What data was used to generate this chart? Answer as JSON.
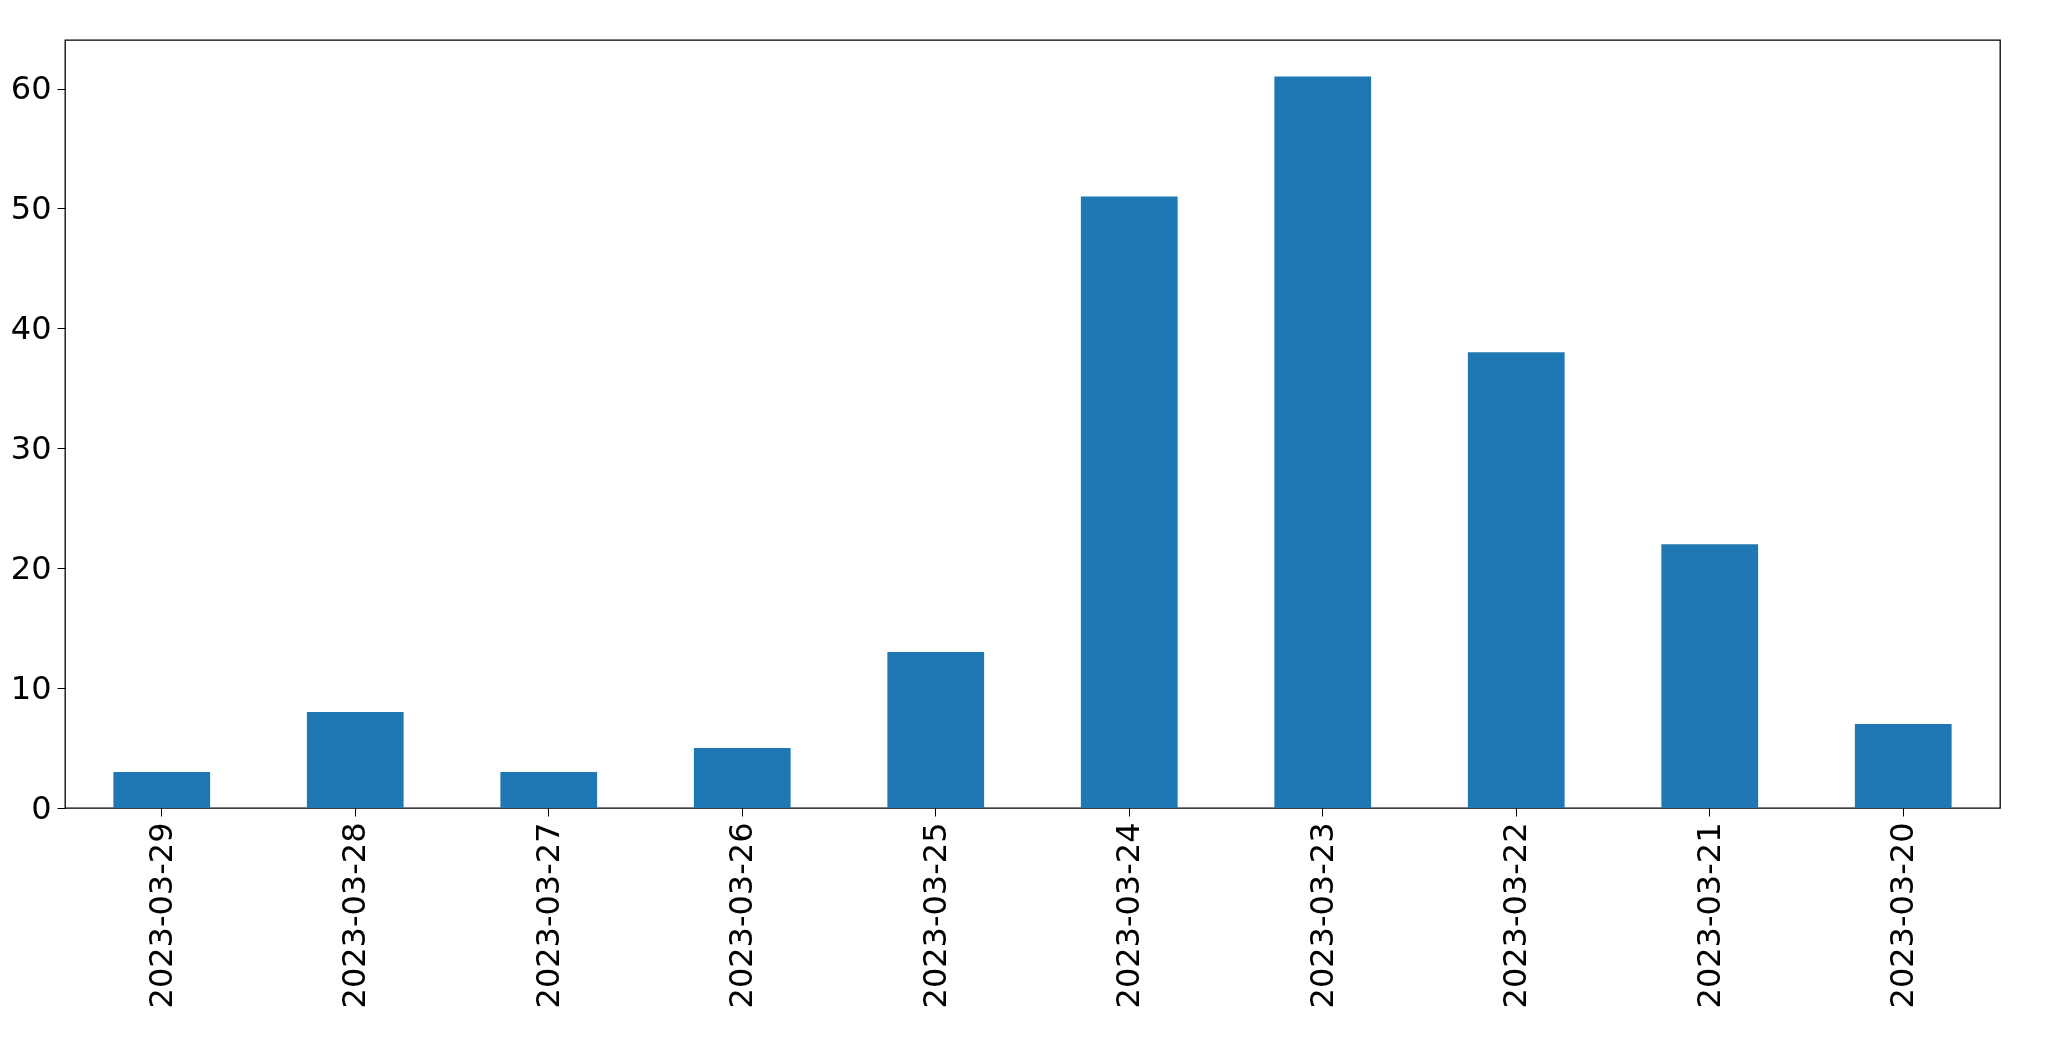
{
  "chart_data": {
    "type": "bar",
    "categories": [
      "2023-03-29",
      "2023-03-28",
      "2023-03-27",
      "2023-03-26",
      "2023-03-25",
      "2023-03-24",
      "2023-03-23",
      "2023-03-22",
      "2023-03-21",
      "2023-03-20"
    ],
    "values": [
      3,
      8,
      3,
      5,
      13,
      51,
      61,
      38,
      22,
      7
    ],
    "color": "#1f77b4",
    "ylim": [
      0,
      64.05
    ],
    "yticks": [
      0,
      10,
      20,
      30,
      40,
      50,
      60
    ]
  }
}
